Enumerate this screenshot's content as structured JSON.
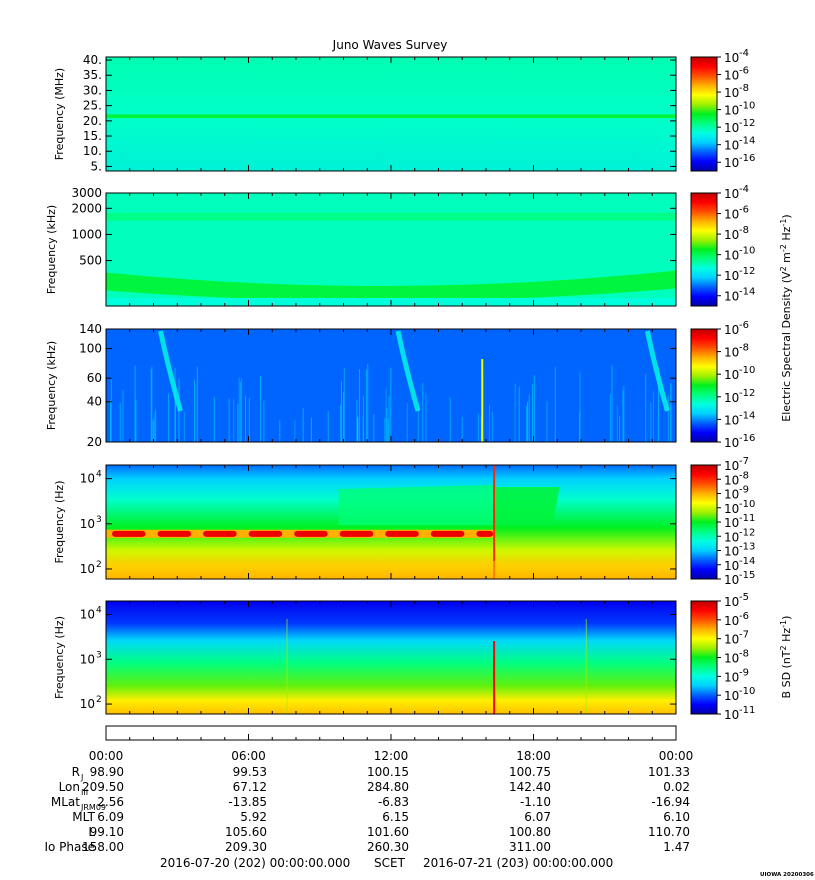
{
  "chart_data": {
    "type": "heatmap",
    "title": "Juno Waves Survey",
    "colors": {
      "background": "#ffffff",
      "frame": "#000000",
      "colormap": [
        "#0000a8",
        "#0000ff",
        "#0060ff",
        "#00d0ff",
        "#00ffe0",
        "#00ff80",
        "#00f020",
        "#a0f000",
        "#ffff00",
        "#ffb000",
        "#ff5000",
        "#ff0000",
        "#c00000"
      ]
    },
    "time_axis": {
      "start": "2016-07-20 00:00",
      "end": "2016-07-21 00:00",
      "tick_labels": [
        "00:00",
        "06:00",
        "12:00",
        "18:00",
        "00:00"
      ]
    },
    "panels": [
      {
        "ylabel": "Frequency (MHz)",
        "yscale": "linear",
        "ylim": [
          3.5,
          41
        ],
        "yticks": [
          "40.",
          "35.",
          "30.",
          "25.",
          "20.",
          "15.",
          "10.",
          "5."
        ],
        "ytick_values": [
          40,
          35,
          30,
          25,
          20,
          15,
          10,
          5
        ],
        "colorbar": {
          "exponents": [
            "-4",
            "-6",
            "-8",
            "-10",
            "-12",
            "-14",
            "-16"
          ],
          "range_exp": [
            -17,
            -4
          ]
        },
        "features": [
          {
            "kind": "band",
            "at": 21.5,
            "width": 1.2,
            "level_exp": -10.8
          },
          {
            "kind": "background",
            "level_exp": -12.0
          }
        ]
      },
      {
        "ylabel": "Frequency (kHz)",
        "yscale": "log",
        "ylim": [
          150,
          3000
        ],
        "yticks": [
          "3000",
          "2000",
          "1000",
          "500"
        ],
        "ytick_values": [
          3000,
          2000,
          1000,
          500
        ],
        "colorbar": {
          "exponents": [
            "-4",
            "-6",
            "-8",
            "-10",
            "-12",
            "-14"
          ],
          "range_exp": [
            -15,
            -4
          ]
        },
        "features": [
          {
            "kind": "band",
            "at": 1600,
            "width": 0.08,
            "level_exp": -10.5
          },
          {
            "kind": "curved-band",
            "at": 280,
            "level_exp": -9.8
          },
          {
            "kind": "background",
            "level_exp": -11.0
          }
        ]
      },
      {
        "ylabel": "Frequency (kHz)",
        "yscale": "log",
        "ylim": [
          20,
          140
        ],
        "yticks": [
          "140",
          "100",
          "60",
          "40",
          "20"
        ],
        "ytick_values": [
          140,
          100,
          60,
          40,
          20
        ],
        "colorbar": {
          "exponents": [
            "-6",
            "-8",
            "-10",
            "-12",
            "-14",
            "-16"
          ],
          "range_exp": [
            -16,
            -6
          ]
        },
        "features": [
          {
            "kind": "background",
            "level_exp": -14.3
          },
          {
            "kind": "burst",
            "at_hour": 2.8,
            "level_exp": -12.8
          },
          {
            "kind": "burst",
            "at_hour": 12.8,
            "level_exp": -12.8
          },
          {
            "kind": "burst",
            "at_hour": 23.3,
            "level_exp": -12.8
          }
        ]
      },
      {
        "ylabel": "Frequency (Hz)",
        "yscale": "log",
        "ylim": [
          60,
          20000
        ],
        "yticks": [
          "10",
          "10",
          "10"
        ],
        "ytick_exponents": [
          "4",
          "3",
          "2"
        ],
        "ytick_values": [
          10000,
          1000,
          100
        ],
        "colorbar": {
          "exponents": [
            "-7",
            "-8",
            "-9",
            "-10",
            "-11",
            "-12",
            "-13",
            "-14",
            "-15"
          ],
          "range_exp": [
            -15,
            -7
          ]
        },
        "features": [
          {
            "kind": "tone",
            "at": 600,
            "from_hour": 0,
            "to_hour": 16.3,
            "level_exp": -7.5
          },
          {
            "kind": "background",
            "level_exp": -11.0
          }
        ]
      },
      {
        "ylabel": "Frequency (Hz)",
        "yscale": "log",
        "ylim": [
          60,
          20000
        ],
        "yticks": [
          "10",
          "10",
          "10"
        ],
        "ytick_exponents": [
          "4",
          "3",
          "2"
        ],
        "ytick_values": [
          10000,
          1000,
          100
        ],
        "colorbar": {
          "exponents": [
            "-5",
            "-6",
            "-7",
            "-8",
            "-9",
            "-10",
            "-11"
          ],
          "range_exp": [
            -11,
            -5
          ]
        },
        "features": [
          {
            "kind": "gradient",
            "level_exp_top": -10.5,
            "level_exp_bottom": -6.5
          },
          {
            "kind": "spike",
            "at_hour": 16.3,
            "level_exp": -5.5
          }
        ]
      }
    ],
    "colorbar_labels": {
      "electric_prefix": "Electric Spectral Density (V",
      "magnetic_prefix": "B SD (nT",
      "power_exp": "2",
      "middle": " m",
      "hz": " Hz",
      "minus_one": "-1",
      "minus_two": "-2",
      "close": ")",
      "base": "10"
    },
    "ephemeris": {
      "rows": [
        {
          "label": "R",
          "sub": "J",
          "values": [
            "98.90",
            "99.53",
            "100.15",
            "100.75",
            "101.33"
          ]
        },
        {
          "label": "Lon",
          "sub": "III",
          "values": [
            "209.50",
            "67.12",
            "284.80",
            "142.40",
            "0.02"
          ]
        },
        {
          "label": "MLat",
          "sub": "JRM09",
          "values": [
            "2.56",
            "-13.85",
            "-6.83",
            "-1.10",
            "-16.94"
          ]
        },
        {
          "label": "MLT",
          "sub": "",
          "values": [
            "6.09",
            "5.92",
            "6.15",
            "6.07",
            "6.10"
          ]
        },
        {
          "label": "L",
          "sub": "",
          "values": [
            "99.10",
            "105.60",
            "101.60",
            "100.80",
            "110.70"
          ]
        },
        {
          "label": "Io Phase",
          "sub": "",
          "values": [
            "158.00",
            "209.30",
            "260.30",
            "311.00",
            "1.47"
          ]
        }
      ]
    },
    "footer": {
      "start": "2016-07-20 (202) 00:00:00.000",
      "label": "SCET",
      "end": "2016-07-21 (203) 00:00:00.000",
      "stamp": "UIOWA 20200306"
    }
  }
}
